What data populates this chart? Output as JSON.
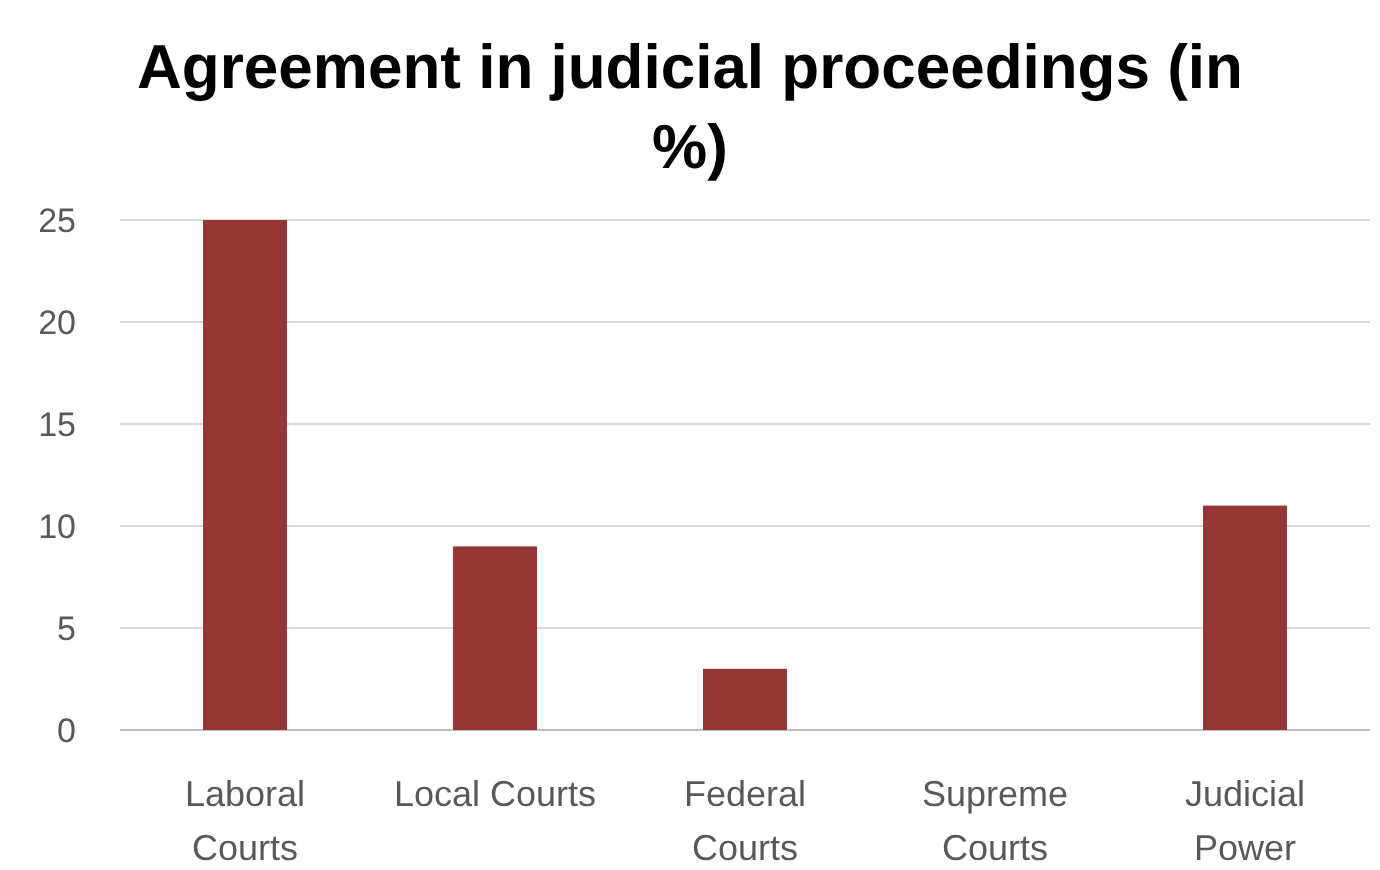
{
  "chart_data": {
    "type": "bar",
    "title": "Agreement in judicial proceedings (in %)",
    "categories": [
      "Laboral Courts",
      "Local Courts",
      "Federal Courts",
      "Supreme Courts",
      "Judicial Power"
    ],
    "values": [
      25,
      9,
      3,
      0,
      11
    ],
    "color": "#953735",
    "ylim": [
      0,
      25
    ],
    "yticks": [
      0,
      5,
      10,
      15,
      20,
      25
    ],
    "grid": "y"
  }
}
